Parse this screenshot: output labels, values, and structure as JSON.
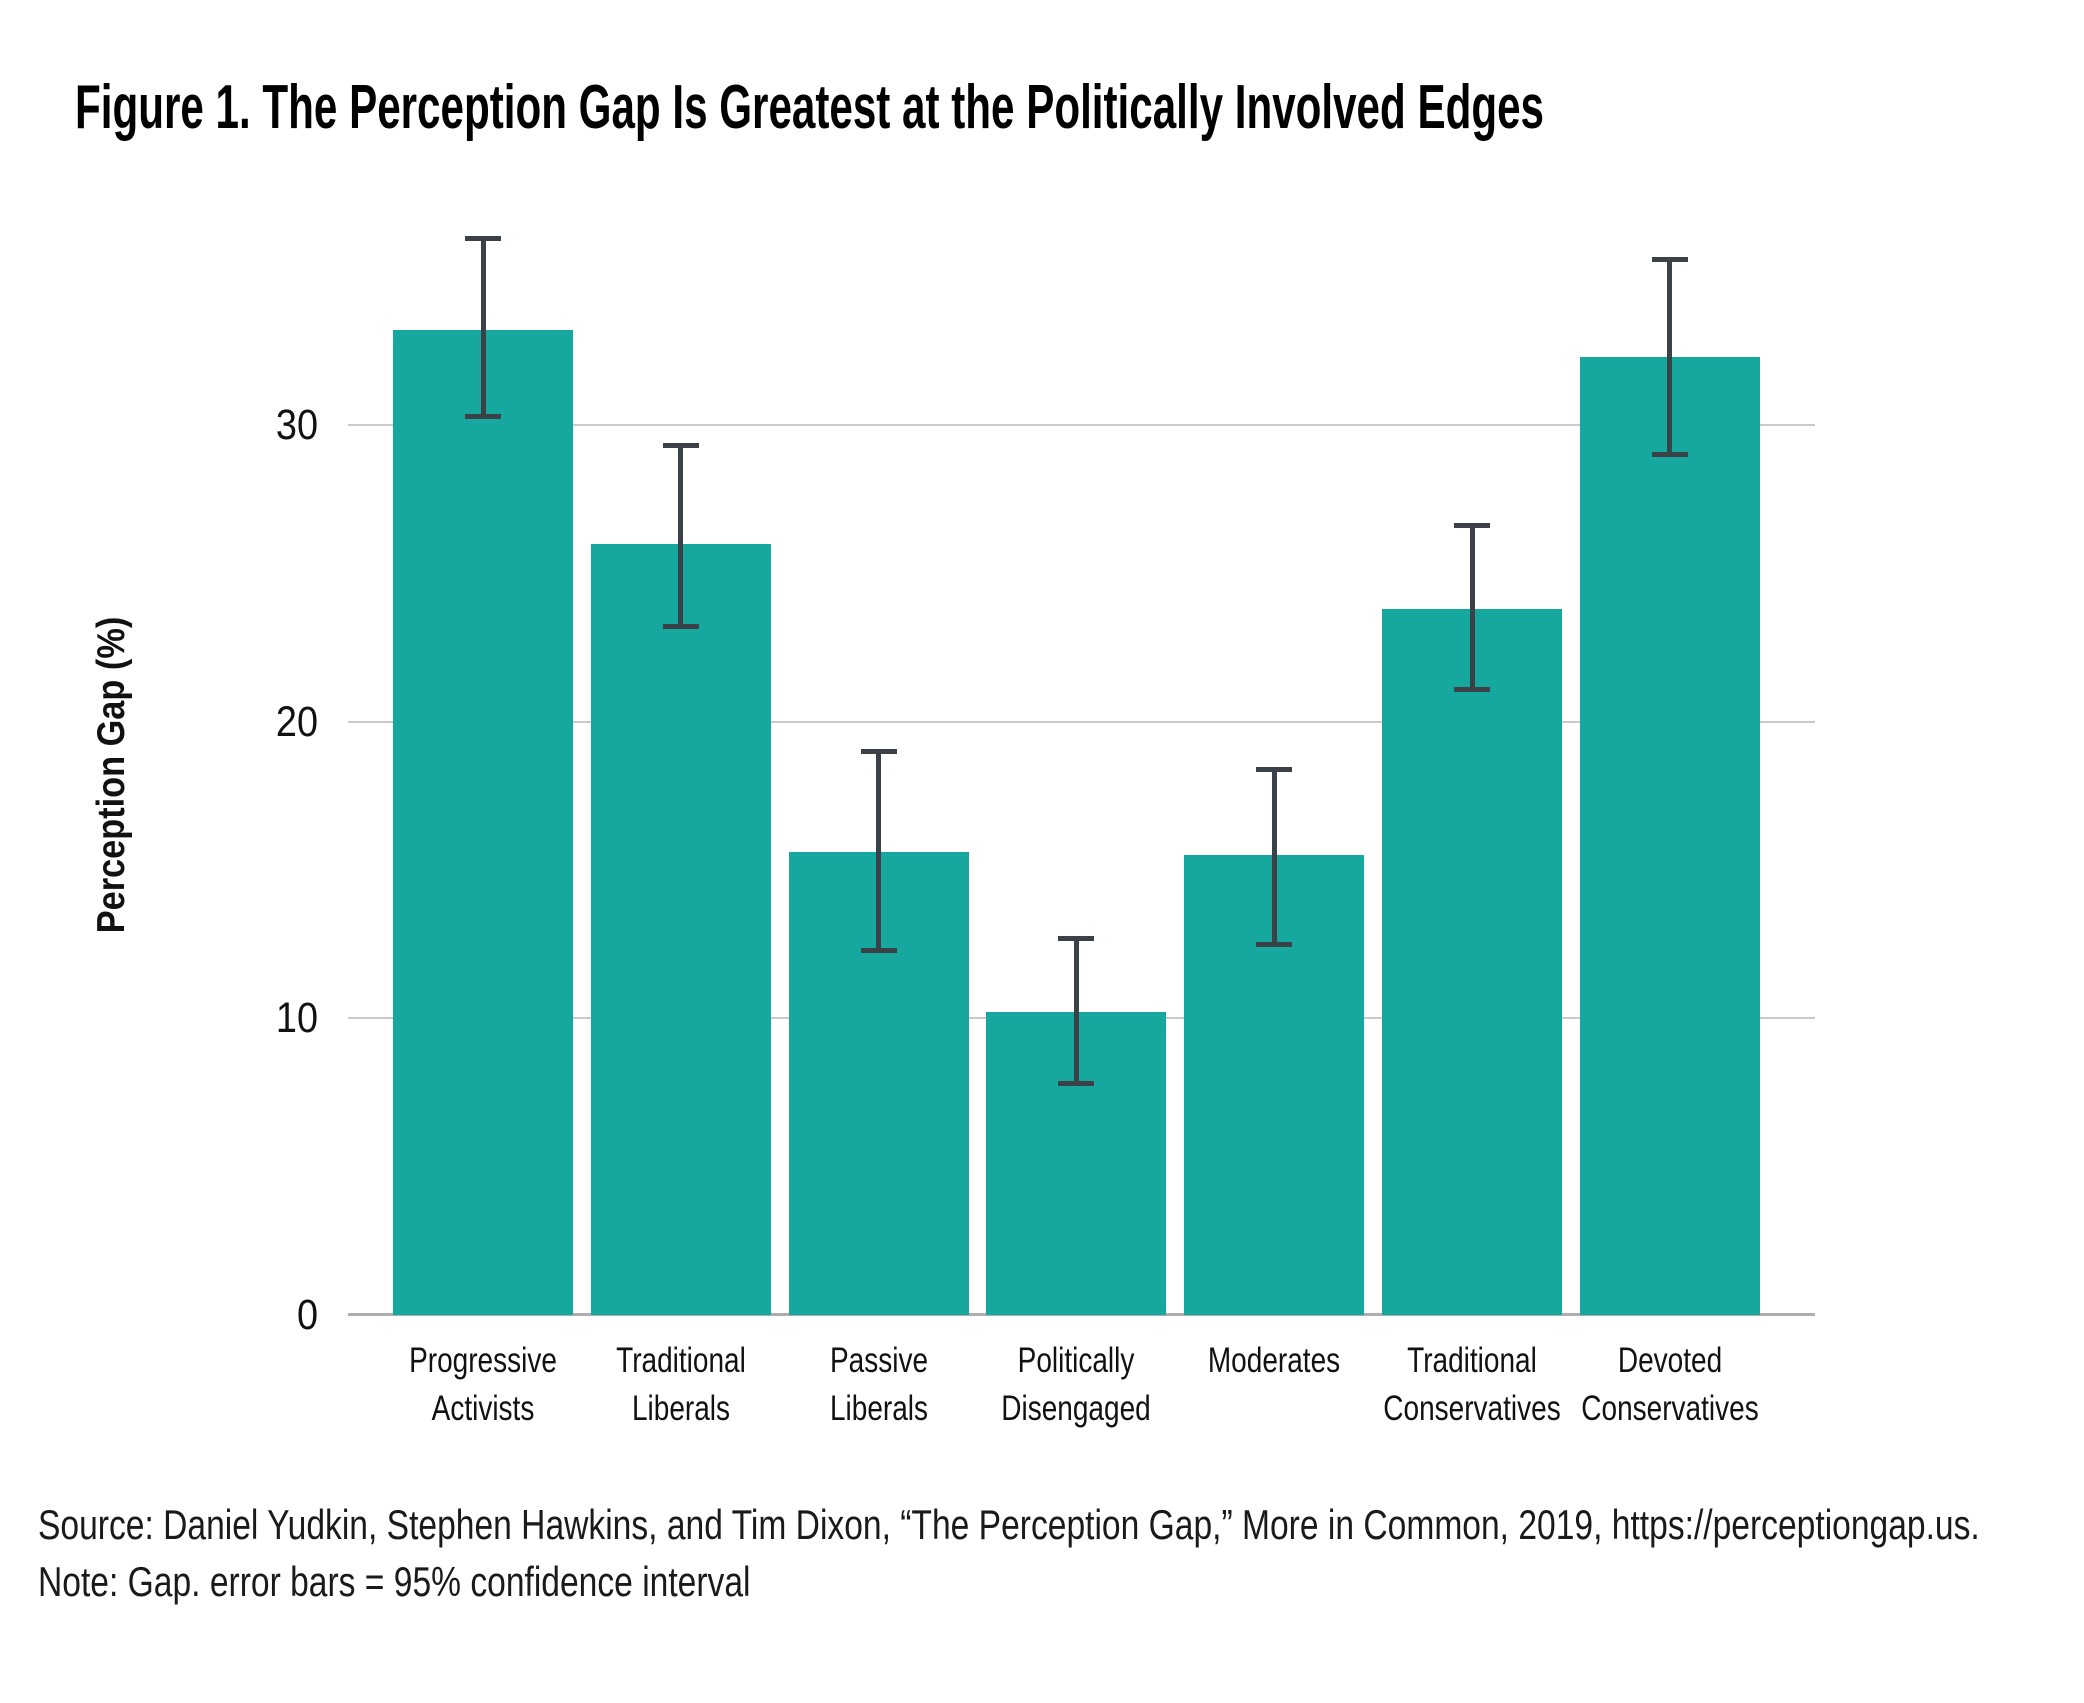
{
  "chart_data": {
    "type": "bar",
    "title": "Figure 1. The Perception Gap Is Greatest at the Politically Involved Edges",
    "ylabel": "Perception Gap (%)",
    "xlabel": "",
    "yticks": [
      0,
      10,
      20,
      30
    ],
    "ylim": [
      0,
      38.6
    ],
    "grid": "horizontal",
    "legend": "none",
    "categories": [
      "Progressive Activists",
      "Traditional Liberals",
      "Passive Liberals",
      "Politically Disengaged",
      "Moderates",
      "Traditional Conservatives",
      "Devoted Conservatives"
    ],
    "label_lines": [
      [
        "Progressive",
        "Activists"
      ],
      [
        "Traditional",
        "Liberals"
      ],
      [
        "Passive",
        "Liberals"
      ],
      [
        "Politically",
        "Disengaged"
      ],
      [
        "Moderates"
      ],
      [
        "Traditional",
        "Conservatives"
      ],
      [
        "Devoted",
        "Conservatives"
      ]
    ],
    "values": [
      33.2,
      26.0,
      15.6,
      10.2,
      15.5,
      23.8,
      32.3
    ],
    "ci_low": [
      30.3,
      23.2,
      12.3,
      7.8,
      12.5,
      21.1,
      29.0
    ],
    "ci_high": [
      36.3,
      29.3,
      19.0,
      12.7,
      18.4,
      26.6,
      35.6
    ],
    "bar_color": "#16A89E",
    "error_bar_color": "#3A4147",
    "gridline_color": "#C9C9C9",
    "source": "Source: Daniel Yudkin, Stephen Hawkins, and Tim Dixon, “The Perception Gap,” More in Common, 2019, https://perceptiongap.us.",
    "note": "Note: Gap. error bars = 95% confidence interval"
  }
}
